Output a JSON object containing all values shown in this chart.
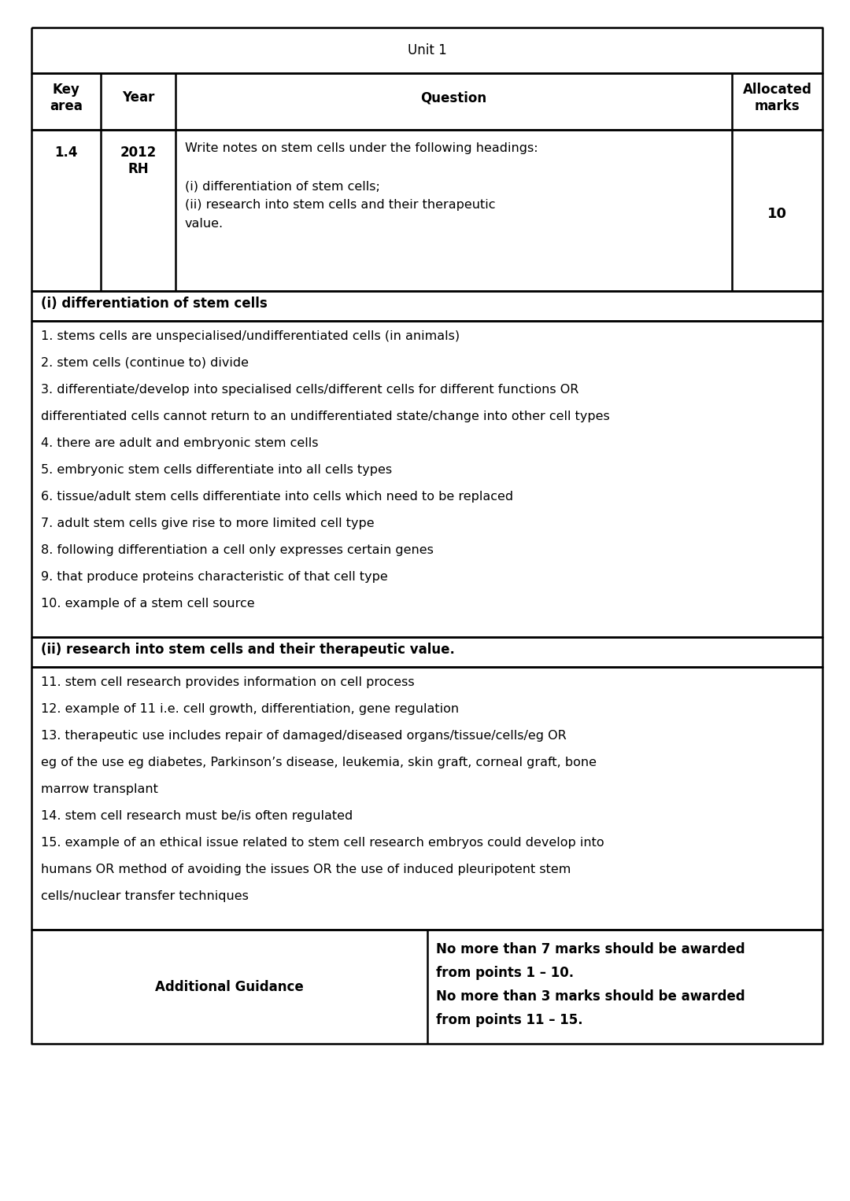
{
  "title": "Unit 1",
  "header_col1": "Key\narea",
  "header_col2": "Year",
  "header_col3": "Question",
  "header_col4": "Allocated\nmarks",
  "row_col1": "1.4",
  "row_col2": "2012\nRH",
  "row_col3_lines": [
    "Write notes on stem cells under the following headings:",
    "",
    "(i) differentiation of stem cells;",
    "(ii) research into stem cells and their therapeutic",
    "value."
  ],
  "row_col4": "10",
  "section1_heading": "(i) differentiation of stem cells",
  "section1_items": [
    "1. stems cells are unspecialised/undifferentiated cells (in animals)",
    "2. stem cells (continue to) divide",
    "3. differentiate/develop into specialised cells/different cells for different functions OR",
    "differentiated cells cannot return to an undifferentiated state/change into other cell types",
    "4. there are adult and embryonic stem cells",
    "5. embryonic stem cells differentiate into all cells types",
    "6. tissue/adult stem cells differentiate into cells which need to be replaced",
    "7. adult stem cells give rise to more limited cell type",
    "8. following differentiation a cell only expresses certain genes",
    "9. that produce proteins characteristic of that cell type",
    "10. example of a stem cell source"
  ],
  "section2_heading": "(ii) research into stem cells and their therapeutic value.",
  "section2_items": [
    "11. stem cell research provides information on cell process",
    "12. example of 11 i.e. cell growth, differentiation, gene regulation",
    "13. therapeutic use includes repair of damaged/diseased organs/tissue/cells/eg OR",
    "eg of the use eg diabetes, Parkinson’s disease, leukemia, skin graft, corneal graft, bone",
    "marrow transplant",
    "14. stem cell research must be/is often regulated",
    "15. example of an ethical issue related to stem cell research embryos could develop into",
    "humans OR method of avoiding the issues OR the use of induced pleuripotent stem",
    "cells/nuclear transfer techniques"
  ],
  "footer_col1": "Additional Guidance",
  "footer_col2_lines": [
    "No more than 7 marks should be awarded",
    "from points 1 – 10.",
    "No more than 3 marks should be awarded",
    "from points 11 – 15."
  ],
  "bg_color": "#ffffff",
  "border_color": "#000000",
  "font_size": 11.5,
  "title_font_size": 12,
  "bold_font_size": 12
}
